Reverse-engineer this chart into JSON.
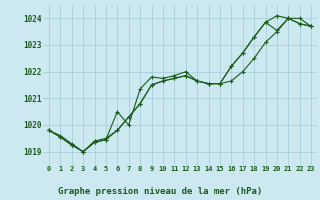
{
  "title": "Graphe pression niveau de la mer (hPa)",
  "background_color": "#cce8f0",
  "grid_color": "#aacfdb",
  "line_color": "#1a5c1a",
  "ylim": [
    1018.5,
    1024.5
  ],
  "xlim": [
    -0.5,
    23.5
  ],
  "yticks": [
    1019,
    1020,
    1021,
    1022,
    1023,
    1024
  ],
  "xtick_labels": [
    "0",
    "1",
    "2",
    "3",
    "4",
    "5",
    "6",
    "7",
    "8",
    "9",
    "10",
    "11",
    "12",
    "13",
    "14",
    "15",
    "16",
    "17",
    "18",
    "19",
    "20",
    "21",
    "22",
    "23"
  ],
  "series": [
    [
      1019.8,
      1019.6,
      1019.3,
      1019.0,
      1019.4,
      1019.5,
      1019.8,
      1020.3,
      1020.8,
      1021.5,
      1021.65,
      1021.75,
      1021.85,
      1021.65,
      1021.55,
      1021.55,
      1021.65,
      1022.0,
      1022.5,
      1023.1,
      1023.5,
      1024.0,
      1023.8,
      1023.7
    ],
    [
      1019.8,
      1019.55,
      1019.25,
      1019.0,
      1019.35,
      1019.45,
      1020.5,
      1020.0,
      1021.35,
      1021.8,
      1021.75,
      1021.85,
      1022.0,
      1021.65,
      1021.55,
      1021.55,
      1022.2,
      1022.7,
      1023.3,
      1023.85,
      1023.55,
      1024.0,
      1023.8,
      1023.7
    ],
    [
      1019.8,
      1019.55,
      1019.25,
      1019.0,
      1019.35,
      1019.45,
      1019.8,
      1020.3,
      1020.8,
      1021.5,
      1021.65,
      1021.75,
      1021.85,
      1021.65,
      1021.55,
      1021.55,
      1022.2,
      1022.7,
      1023.3,
      1023.85,
      1024.1,
      1024.0,
      1024.0,
      1023.7
    ]
  ]
}
